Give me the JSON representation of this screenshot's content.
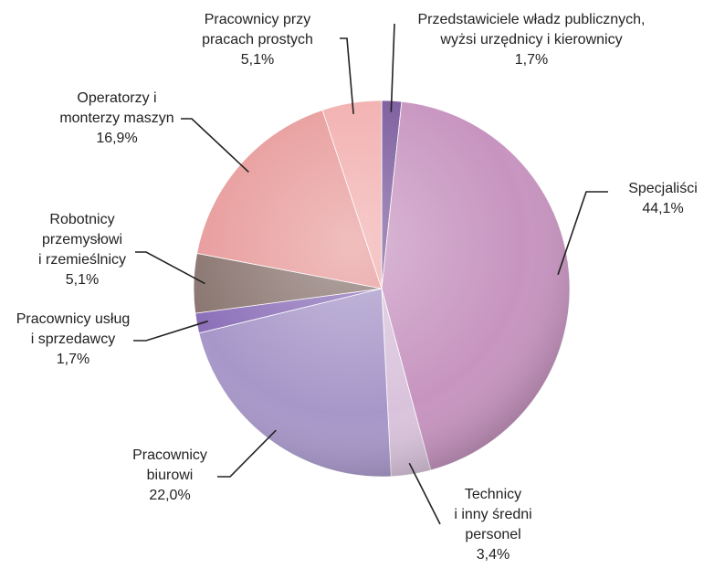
{
  "chart_data": {
    "type": "pie",
    "categories": [
      [
        "Przedstawiciele władz publicznych,",
        "wyżsi urzędnicy i kierownicy"
      ],
      [
        "Specjaliści"
      ],
      [
        "Technicy",
        "i inny średni",
        "personel"
      ],
      [
        "Pracownicy",
        "biurowi"
      ],
      [
        "Pracownicy usług",
        "i sprzedawcy"
      ],
      [
        "Robotnicy",
        "przemysłowi",
        "i rzemieślnicy"
      ],
      [
        "Operatorzy i",
        "monterzy maszyn"
      ],
      [
        "Pracownicy przy",
        "pracach prostych"
      ]
    ],
    "values": [
      1.7,
      44.1,
      3.4,
      22.0,
      1.7,
      5.1,
      16.9,
      5.1
    ],
    "value_labels": [
      "1,7%",
      "44,1%",
      "3,4%",
      "22,0%",
      "1,7%",
      "5,1%",
      "16,9%",
      "5,1%"
    ],
    "colors": [
      "#7a5a9c",
      "#c794c0",
      "#d9c3dc",
      "#a797c9",
      "#8c70b9",
      "#8b7671",
      "#e89b9b",
      "#f2aeae"
    ]
  }
}
